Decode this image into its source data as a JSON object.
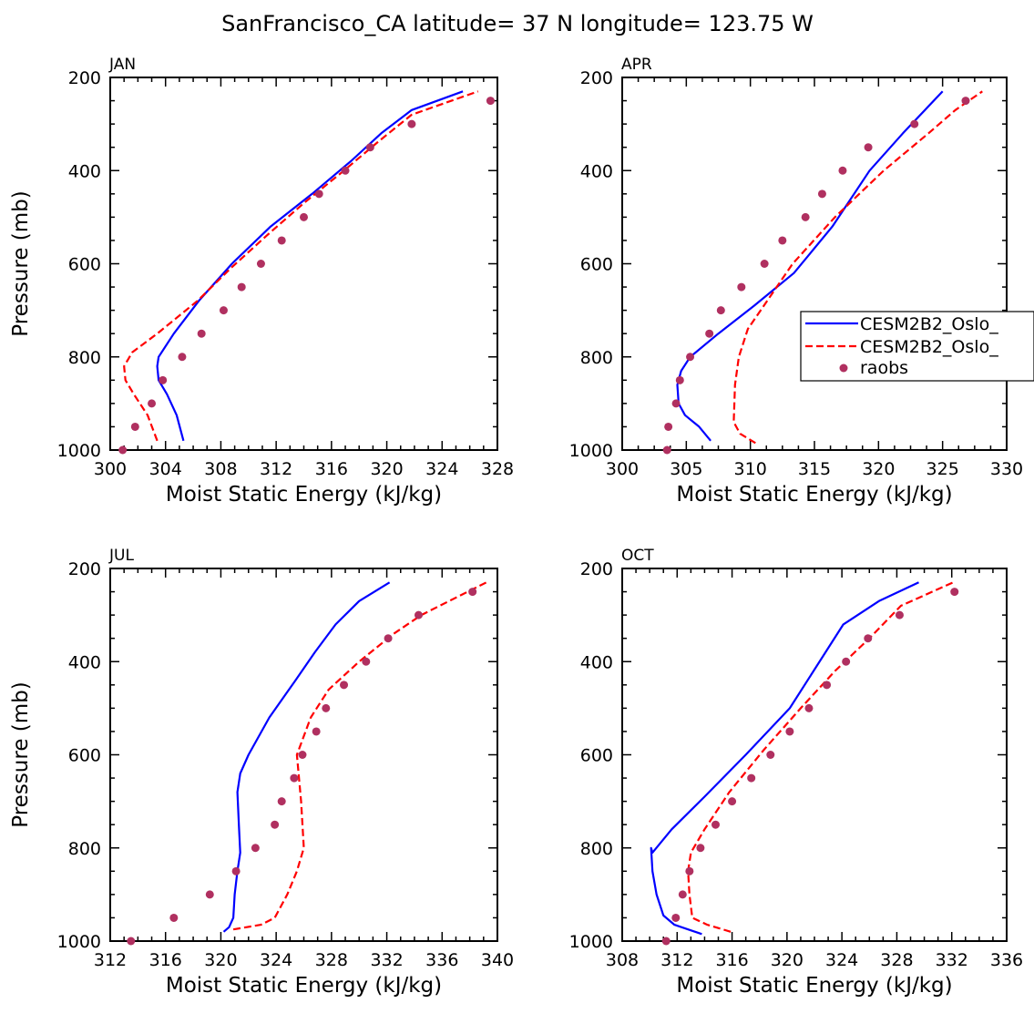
{
  "title": "SanFrancisco_CA  latitude= 37 N longitude= 123.75 W",
  "colors": {
    "model1": "#0000ff",
    "model2": "#ff0000",
    "obs": "#b03060",
    "axis": "#000000"
  },
  "legend": {
    "entries": [
      "CESM2B2_Oslo_",
      "CESM2B2_Oslo_",
      "raobs"
    ]
  },
  "chart_data": [
    {
      "type": "line",
      "panel": "JAN",
      "xlabel": "Moist Static Energy (kJ/kg)",
      "ylabel": "Pressure (mb)",
      "xlim": [
        300,
        328
      ],
      "ylim": [
        1000,
        200
      ],
      "xticks": [
        300,
        304,
        308,
        312,
        316,
        320,
        324,
        328
      ],
      "yticks": [
        200,
        400,
        600,
        800,
        1000
      ],
      "series": [
        {
          "name": "CESM2B2_Oslo_",
          "style": "solid",
          "x": [
            305.3,
            304.8,
            304.1,
            303.5,
            303.4,
            303.5,
            304.6,
            306.4,
            308.8,
            311.6,
            314.6,
            317.4,
            319.6,
            321.8,
            325.5
          ],
          "y": [
            980,
            925,
            880,
            850,
            820,
            800,
            750,
            680,
            600,
            520,
            450,
            380,
            320,
            270,
            230
          ]
        },
        {
          "name": "CESM2B2_Oslo_",
          "style": "dashed",
          "x": [
            303.4,
            302.7,
            301.7,
            301.1,
            301.0,
            301.6,
            303.4,
            306.3,
            308.7,
            311.3,
            314.0,
            316.9,
            319.3,
            321.8,
            326.6
          ],
          "y": [
            980,
            925,
            880,
            850,
            820,
            790,
            750,
            680,
            610,
            540,
            470,
            400,
            340,
            280,
            230
          ]
        },
        {
          "name": "raobs",
          "style": "points",
          "x": [
            300.9,
            301.8,
            303.0,
            303.8,
            305.2,
            306.6,
            308.2,
            309.5,
            310.9,
            312.4,
            314.0,
            315.1,
            317.0,
            318.8,
            321.8,
            327.5
          ],
          "y": [
            1000,
            950,
            900,
            850,
            800,
            750,
            700,
            650,
            600,
            550,
            500,
            450,
            400,
            350,
            300,
            250
          ]
        }
      ]
    },
    {
      "type": "line",
      "panel": "APR",
      "xlabel": "Moist Static Energy (kJ/kg)",
      "ylabel": "",
      "xlim": [
        300,
        330
      ],
      "ylim": [
        1000,
        200
      ],
      "xticks": [
        300,
        305,
        310,
        315,
        320,
        325,
        330
      ],
      "yticks": [
        200,
        400,
        600,
        800,
        1000
      ],
      "series": [
        {
          "name": "CESM2B2_Oslo_",
          "style": "solid",
          "x": [
            306.9,
            306.0,
            304.9,
            304.4,
            304.3,
            304.6,
            305.3,
            307.5,
            310.3,
            313.4,
            316.4,
            319.3,
            321.9,
            325.0
          ],
          "y": [
            980,
            950,
            925,
            900,
            860,
            830,
            800,
            750,
            690,
            620,
            520,
            400,
            320,
            230
          ]
        },
        {
          "name": "CESM2B2_Oslo_",
          "style": "dashed",
          "x": [
            310.4,
            309.2,
            308.7,
            308.8,
            309.1,
            309.8,
            313.3,
            316.6,
            320.4,
            323.9,
            326.0,
            328.1
          ],
          "y": [
            985,
            965,
            940,
            860,
            800,
            740,
            600,
            500,
            400,
            320,
            270,
            230
          ]
        },
        {
          "name": "raobs",
          "style": "points",
          "x": [
            303.5,
            303.6,
            304.2,
            304.5,
            305.3,
            306.8,
            307.7,
            309.3,
            311.1,
            312.5,
            314.3,
            315.6,
            317.2,
            319.2,
            322.8,
            326.8
          ],
          "y": [
            1000,
            950,
            900,
            850,
            800,
            750,
            700,
            650,
            600,
            550,
            500,
            450,
            400,
            350,
            300,
            250
          ]
        }
      ]
    },
    {
      "type": "line",
      "panel": "JUL",
      "xlabel": "Moist Static Energy (kJ/kg)",
      "ylabel": "Pressure (mb)",
      "xlim": [
        312,
        340
      ],
      "ylim": [
        1000,
        200
      ],
      "xticks": [
        312,
        316,
        320,
        324,
        328,
        332,
        336,
        340
      ],
      "yticks": [
        200,
        400,
        600,
        800,
        1000
      ],
      "series": [
        {
          "name": "CESM2B2_Oslo_",
          "style": "solid",
          "x": [
            320.2,
            320.6,
            320.9,
            321.0,
            321.2,
            321.4,
            321.3,
            321.2,
            321.4,
            322.0,
            323.5,
            325.4,
            326.8,
            328.3,
            330.0,
            332.2
          ],
          "y": [
            980,
            970,
            950,
            900,
            850,
            810,
            750,
            680,
            640,
            600,
            520,
            440,
            380,
            320,
            270,
            230
          ]
        },
        {
          "name": "CESM2B2_Oslo_",
          "style": "dashed",
          "x": [
            320.9,
            322.9,
            323.9,
            324.8,
            325.5,
            326.0,
            325.8,
            325.5,
            326.5,
            327.8,
            330.0,
            332.5,
            334.5,
            336.5,
            339.2
          ],
          "y": [
            975,
            965,
            950,
            900,
            850,
            800,
            700,
            600,
            520,
            460,
            400,
            340,
            300,
            270,
            230
          ]
        },
        {
          "name": "raobs",
          "style": "points",
          "x": [
            313.5,
            316.6,
            319.2,
            321.1,
            322.5,
            323.9,
            324.4,
            325.3,
            325.9,
            326.9,
            327.6,
            328.9,
            330.5,
            332.1,
            334.3,
            338.2
          ],
          "y": [
            1000,
            950,
            900,
            850,
            800,
            750,
            700,
            650,
            600,
            550,
            500,
            450,
            400,
            350,
            300,
            250
          ]
        }
      ]
    },
    {
      "type": "line",
      "panel": "OCT",
      "xlabel": "Moist Static Energy (kJ/kg)",
      "ylabel": "",
      "xlim": [
        308,
        336
      ],
      "ylim": [
        1000,
        200
      ],
      "xticks": [
        308,
        312,
        316,
        320,
        324,
        328,
        332,
        336
      ],
      "yticks": [
        200,
        400,
        600,
        800,
        1000
      ],
      "series": [
        {
          "name": "CESM2B2_Oslo_",
          "style": "solid",
          "x": [
            313.8,
            311.8,
            311.0,
            310.5,
            310.2,
            310.1,
            310.2,
            311.6,
            314.0,
            317.0,
            320.2,
            324.1,
            326.7,
            329.6
          ],
          "y": [
            985,
            965,
            945,
            900,
            850,
            800,
            810,
            760,
            690,
            600,
            500,
            320,
            270,
            230
          ]
        },
        {
          "name": "CESM2B2_Oslo_",
          "style": "dashed",
          "x": [
            315.9,
            314.2,
            313.1,
            312.9,
            312.8,
            313.0,
            314.0,
            315.8,
            318.3,
            321.0,
            323.5,
            326.0,
            328.3,
            332.1
          ],
          "y": [
            980,
            965,
            950,
            900,
            850,
            810,
            760,
            680,
            590,
            500,
            420,
            350,
            280,
            230
          ]
        },
        {
          "name": "raobs",
          "style": "points",
          "x": [
            311.2,
            311.9,
            312.4,
            312.9,
            313.7,
            314.8,
            316.0,
            317.4,
            318.8,
            320.2,
            321.6,
            322.9,
            324.3,
            325.9,
            328.2,
            332.2
          ],
          "y": [
            1000,
            950,
            900,
            850,
            800,
            750,
            700,
            650,
            600,
            550,
            500,
            450,
            400,
            350,
            300,
            250
          ]
        }
      ]
    }
  ]
}
